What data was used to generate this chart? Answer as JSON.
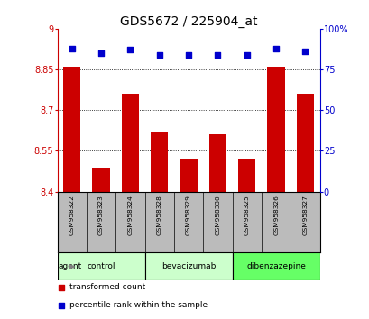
{
  "title": "GDS5672 / 225904_at",
  "samples": [
    "GSM958322",
    "GSM958323",
    "GSM958324",
    "GSM958328",
    "GSM958329",
    "GSM958330",
    "GSM958325",
    "GSM958326",
    "GSM958327"
  ],
  "bar_values": [
    8.86,
    8.49,
    8.76,
    8.62,
    8.52,
    8.61,
    8.52,
    8.86,
    8.76
  ],
  "percentile_values": [
    88,
    85,
    87,
    84,
    84,
    84,
    84,
    88,
    86
  ],
  "ylim_left": [
    8.4,
    9.0
  ],
  "ylim_right": [
    0,
    100
  ],
  "yticks_left": [
    8.4,
    8.55,
    8.7,
    8.85,
    9.0
  ],
  "yticks_right": [
    0,
    25,
    50,
    75,
    100
  ],
  "ytick_labels_left": [
    "8.4",
    "8.55",
    "8.7",
    "8.85",
    "9"
  ],
  "ytick_labels_right": [
    "0",
    "25",
    "50",
    "75",
    "100%"
  ],
  "bar_color": "#cc0000",
  "percentile_color": "#0000cc",
  "bar_bottom": 8.4,
  "groups": [
    {
      "label": "control",
      "indices": [
        0,
        1,
        2
      ],
      "color": "#ccffcc"
    },
    {
      "label": "bevacizumab",
      "indices": [
        3,
        4,
        5
      ],
      "color": "#ccffcc"
    },
    {
      "label": "dibenzazepine",
      "indices": [
        6,
        7,
        8
      ],
      "color": "#66ff66"
    }
  ],
  "group_row_label": "agent",
  "legend_items": [
    {
      "label": "transformed count",
      "color": "#cc0000"
    },
    {
      "label": "percentile rank within the sample",
      "color": "#0000cc"
    }
  ],
  "bg_color": "#ffffff",
  "plot_bg_color": "#ffffff",
  "tick_area_color": "#bbbbbb",
  "title_fontsize": 10,
  "tick_fontsize": 7
}
